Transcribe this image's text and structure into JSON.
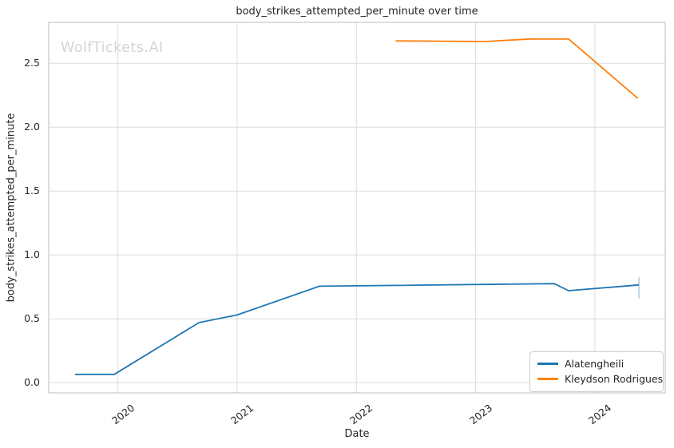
{
  "watermark": {
    "text": "WolfTickets.AI",
    "color": "#d4d4d4"
  },
  "chart_data": {
    "type": "line",
    "title": "body_strikes_attempted_per_minute over time",
    "xlabel": "Date",
    "ylabel": "body_strikes_attempted_per_minute",
    "x_unit": "decimal_year",
    "xlim": [
      2019.42,
      2024.59
    ],
    "ylim": [
      -0.08,
      2.82
    ],
    "grid": true,
    "legend_position": "lower right",
    "xticks": {
      "values": [
        2020,
        2021,
        2022,
        2023,
        2024
      ],
      "labels": [
        "2020",
        "2021",
        "2022",
        "2023",
        "2024"
      ]
    },
    "yticks": {
      "values": [
        0,
        0.5,
        1.0,
        1.5,
        2.0,
        2.5
      ],
      "labels": [
        "0.0",
        "0.5",
        "1.0",
        "1.5",
        "2.0",
        "2.5"
      ]
    },
    "series": [
      {
        "name": "Alatengheili",
        "color": "#1f77b4",
        "x": [
          2019.64,
          2019.97,
          2020.68,
          2021.0,
          2021.69,
          2023.66,
          2023.78,
          2024.37
        ],
        "y": [
          0.065,
          0.065,
          0.47,
          0.53,
          0.755,
          0.775,
          0.72,
          0.765
        ],
        "ci_final": {
          "x": 2024.37,
          "y_low": 0.66,
          "y_high": 0.825
        }
      },
      {
        "name": "Kleydson Rodrigues",
        "color": "#ff7f0e",
        "x": [
          2022.33,
          2023.08,
          2023.46,
          2023.78,
          2024.36
        ],
        "y": [
          2.675,
          2.67,
          2.69,
          2.69,
          2.225
        ]
      }
    ]
  }
}
